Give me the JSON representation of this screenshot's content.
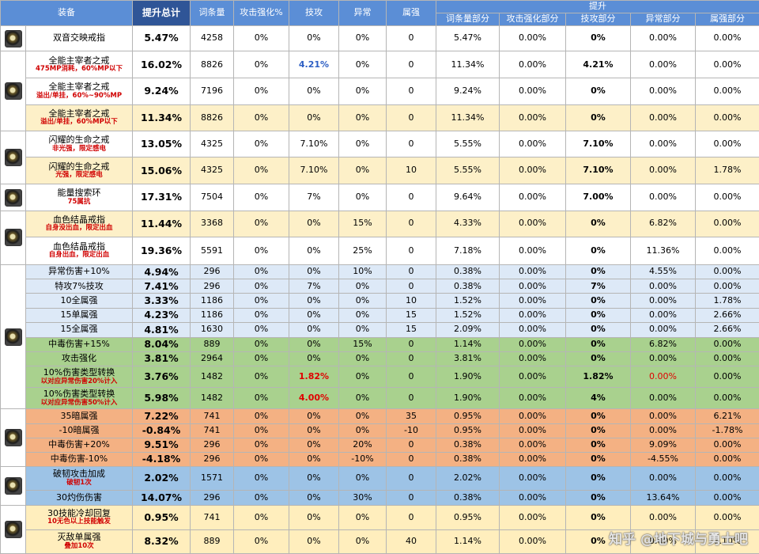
{
  "table": {
    "header": {
      "columns": [
        "装备",
        "提升总计",
        "词条量",
        "攻击强化%",
        "技攻",
        "异常",
        "属强"
      ],
      "group": "提升",
      "subcolumns": [
        "词条量部分",
        "攻击强化部分",
        "技攻部分",
        "异常部分",
        "属强部分"
      ]
    },
    "rows": [
      {
        "name": "双音交映戒指",
        "cells": [
          "5.47%",
          "4258",
          "0%",
          "0%",
          "0%",
          "0",
          "5.47%",
          "0.00%",
          "0%",
          "0.00%",
          "0.00%"
        ]
      },
      {
        "name": "全能主宰者之戒",
        "sub": "475MP消耗，60%MP以下",
        "cells": [
          "16.02%",
          "8826",
          "0%",
          "4.21%",
          "0%",
          "0",
          "11.34%",
          "0.00%",
          "4.21%",
          "0.00%",
          "0.00%"
        ]
      },
      {
        "name": "全能主宰者之戒",
        "sub": "溢出/单挂，60%~90%MP",
        "cells": [
          "9.24%",
          "7196",
          "0%",
          "0%",
          "0%",
          "0",
          "9.24%",
          "0.00%",
          "0%",
          "0.00%",
          "0.00%"
        ]
      },
      {
        "name": "全能主宰者之戒",
        "sub": "溢出/单挂，60%MP以下",
        "cells": [
          "11.34%",
          "8826",
          "0%",
          "0%",
          "0%",
          "0",
          "11.34%",
          "0.00%",
          "0%",
          "0.00%",
          "0.00%"
        ]
      },
      {
        "name": "闪耀的生命之戒",
        "sub": "非光强，限定感电",
        "cells": [
          "13.05%",
          "4325",
          "0%",
          "7.10%",
          "0%",
          "0",
          "5.55%",
          "0.00%",
          "7.10%",
          "0.00%",
          "0.00%"
        ]
      },
      {
        "name": "闪耀的生命之戒",
        "sub": "光强，限定感电",
        "cells": [
          "15.06%",
          "4325",
          "0%",
          "7.10%",
          "0%",
          "10",
          "5.55%",
          "0.00%",
          "7.10%",
          "0.00%",
          "1.78%"
        ]
      },
      {
        "name": "能量搜索环",
        "sub": "75属抗",
        "cells": [
          "17.31%",
          "7504",
          "0%",
          "7%",
          "0%",
          "0",
          "9.64%",
          "0.00%",
          "7.00%",
          "0.00%",
          "0.00%"
        ]
      },
      {
        "name": "血色结晶戒指",
        "sub": "自身没出血，限定出血",
        "cells": [
          "11.44%",
          "3368",
          "0%",
          "0%",
          "15%",
          "0",
          "4.33%",
          "0.00%",
          "0%",
          "6.82%",
          "0.00%"
        ]
      },
      {
        "name": "血色结晶戒指",
        "sub": "自身出血，限定出血",
        "cells": [
          "19.36%",
          "5591",
          "0%",
          "0%",
          "25%",
          "0",
          "7.18%",
          "0.00%",
          "0%",
          "11.36%",
          "0.00%"
        ]
      },
      {
        "name": "异常伤害+10%",
        "cells": [
          "4.94%",
          "296",
          "0%",
          "0%",
          "10%",
          "0",
          "0.38%",
          "0.00%",
          "0%",
          "4.55%",
          "0.00%"
        ]
      },
      {
        "name": "特攻7%技攻",
        "cells": [
          "7.41%",
          "296",
          "0%",
          "7%",
          "0%",
          "0",
          "0.38%",
          "0.00%",
          "7%",
          "0.00%",
          "0.00%"
        ]
      },
      {
        "name": "10全属强",
        "cells": [
          "3.33%",
          "1186",
          "0%",
          "0%",
          "0%",
          "10",
          "1.52%",
          "0.00%",
          "0%",
          "0.00%",
          "1.78%"
        ]
      },
      {
        "name": "15单属强",
        "cells": [
          "4.23%",
          "1186",
          "0%",
          "0%",
          "0%",
          "15",
          "1.52%",
          "0.00%",
          "0%",
          "0.00%",
          "2.66%"
        ]
      },
      {
        "name": "15全属强",
        "cells": [
          "4.81%",
          "1630",
          "0%",
          "0%",
          "0%",
          "15",
          "2.09%",
          "0.00%",
          "0%",
          "0.00%",
          "2.66%"
        ]
      },
      {
        "name": "中毒伤害+15%",
        "cells": [
          "8.04%",
          "889",
          "0%",
          "0%",
          "15%",
          "0",
          "1.14%",
          "0.00%",
          "0%",
          "6.82%",
          "0.00%"
        ]
      },
      {
        "name": "攻击强化",
        "cells": [
          "3.81%",
          "2964",
          "0%",
          "0%",
          "0%",
          "0",
          "3.81%",
          "0.00%",
          "0%",
          "0.00%",
          "0.00%"
        ]
      },
      {
        "name": "10%伤害类型转换",
        "sub": "以对应异常伤害20%计入",
        "cells": [
          "3.76%",
          "1482",
          "0%",
          "1.82%",
          "0%",
          "0",
          "1.90%",
          "0.00%",
          "1.82%",
          "0.00%",
          "0.00%"
        ]
      },
      {
        "name": "10%伤害类型转换",
        "sub": "以对应异常伤害50%计入",
        "cells": [
          "5.98%",
          "1482",
          "0%",
          "4.00%",
          "0%",
          "0",
          "1.90%",
          "0.00%",
          "4%",
          "0.00%",
          "0.00%"
        ]
      },
      {
        "name": "35暗属强",
        "cells": [
          "7.22%",
          "741",
          "0%",
          "0%",
          "0%",
          "35",
          "0.95%",
          "0.00%",
          "0%",
          "0.00%",
          "6.21%"
        ]
      },
      {
        "name": "-10暗属强",
        "cells": [
          "-0.84%",
          "741",
          "0%",
          "0%",
          "0%",
          "-10",
          "0.95%",
          "0.00%",
          "0%",
          "0.00%",
          "-1.78%"
        ]
      },
      {
        "name": "中毒伤害+20%",
        "cells": [
          "9.51%",
          "296",
          "0%",
          "0%",
          "20%",
          "0",
          "0.38%",
          "0.00%",
          "0%",
          "9.09%",
          "0.00%"
        ]
      },
      {
        "name": "中毒伤害-10%",
        "cells": [
          "-4.18%",
          "296",
          "0%",
          "0%",
          "-10%",
          "0",
          "0.38%",
          "0.00%",
          "0%",
          "-4.55%",
          "0.00%"
        ]
      },
      {
        "name": "破韧攻击加成",
        "sub": "破韧1次",
        "cells": [
          "2.02%",
          "1571",
          "0%",
          "0%",
          "0%",
          "0",
          "2.02%",
          "0.00%",
          "0%",
          "0.00%",
          "0.00%"
        ]
      },
      {
        "name": "30灼伤伤害",
        "cells": [
          "14.07%",
          "296",
          "0%",
          "0%",
          "30%",
          "0",
          "0.38%",
          "0.00%",
          "0%",
          "13.64%",
          "0.00%"
        ]
      },
      {
        "name": "30技能冷却回复",
        "sub": "10无色以上技能触发",
        "cells": [
          "0.95%",
          "741",
          "0%",
          "0%",
          "0%",
          "0",
          "0.95%",
          "0.00%",
          "0%",
          "0.00%",
          "0.00%"
        ]
      },
      {
        "name": "灭敌单属强",
        "sub": "叠加10次",
        "cells": [
          "8.32%",
          "889",
          "0%",
          "0%",
          "0%",
          "40",
          "1.14%",
          "0.00%",
          "0%",
          "0.00%",
          "7.10%"
        ]
      }
    ]
  },
  "watermark": "知乎 @地下城与勇士吧"
}
